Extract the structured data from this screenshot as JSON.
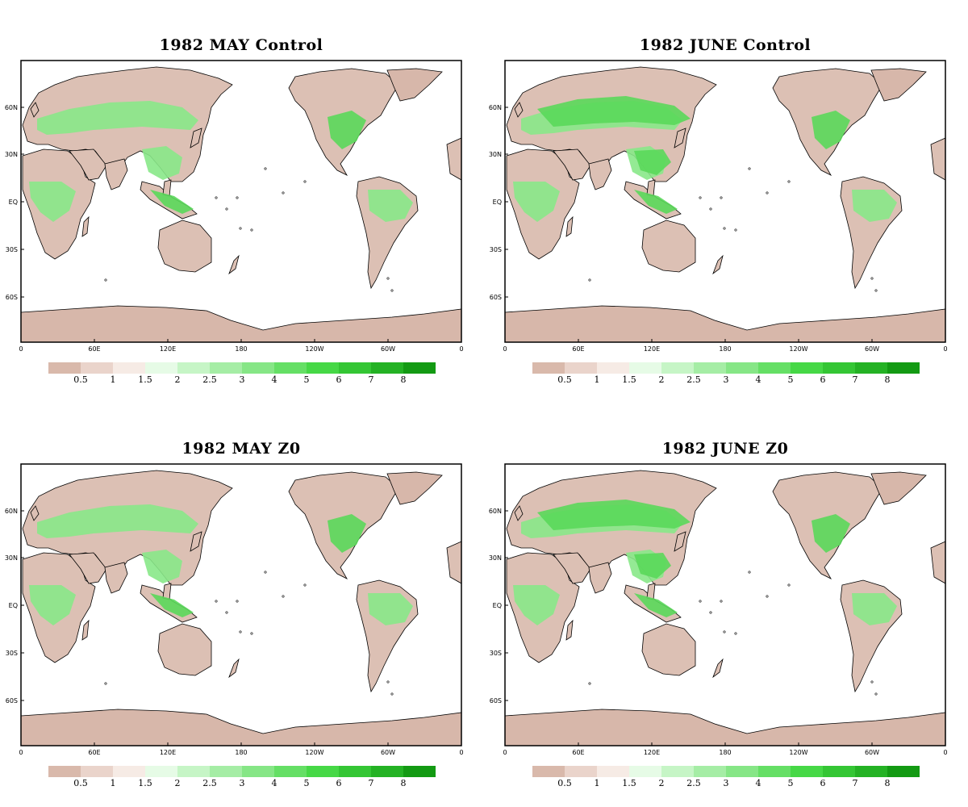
{
  "panels": [
    {
      "title": "1982 MAY Control"
    },
    {
      "title": "1982 JUNE Control"
    },
    {
      "title": "1982 MAY Z0"
    },
    {
      "title": "1982 JUNE Z0"
    }
  ],
  "axes": {
    "x_ticks": [
      "0",
      "60E",
      "120E",
      "180",
      "120W",
      "60W",
      "0"
    ],
    "y_ticks": [
      "60N",
      "30N",
      "EQ",
      "30S",
      "60S"
    ]
  },
  "colorbar": {
    "labels": [
      "0.5",
      "1",
      "1.5",
      "2",
      "2.5",
      "3",
      "4",
      "5",
      "6",
      "7",
      "8"
    ],
    "colors": [
      "#d9b9ab",
      "#ead4cb",
      "#f6ebe5",
      "#e6fbe6",
      "#c6f5c6",
      "#a5eda5",
      "#86e686",
      "#65df65",
      "#46d846",
      "#34c634",
      "#24b224",
      "#139a13"
    ]
  },
  "land_colors": {
    "dry": "#dcc0b4",
    "moist": "#88e888",
    "wet": "#5ad85a",
    "ice": "#d7b7aa"
  }
}
